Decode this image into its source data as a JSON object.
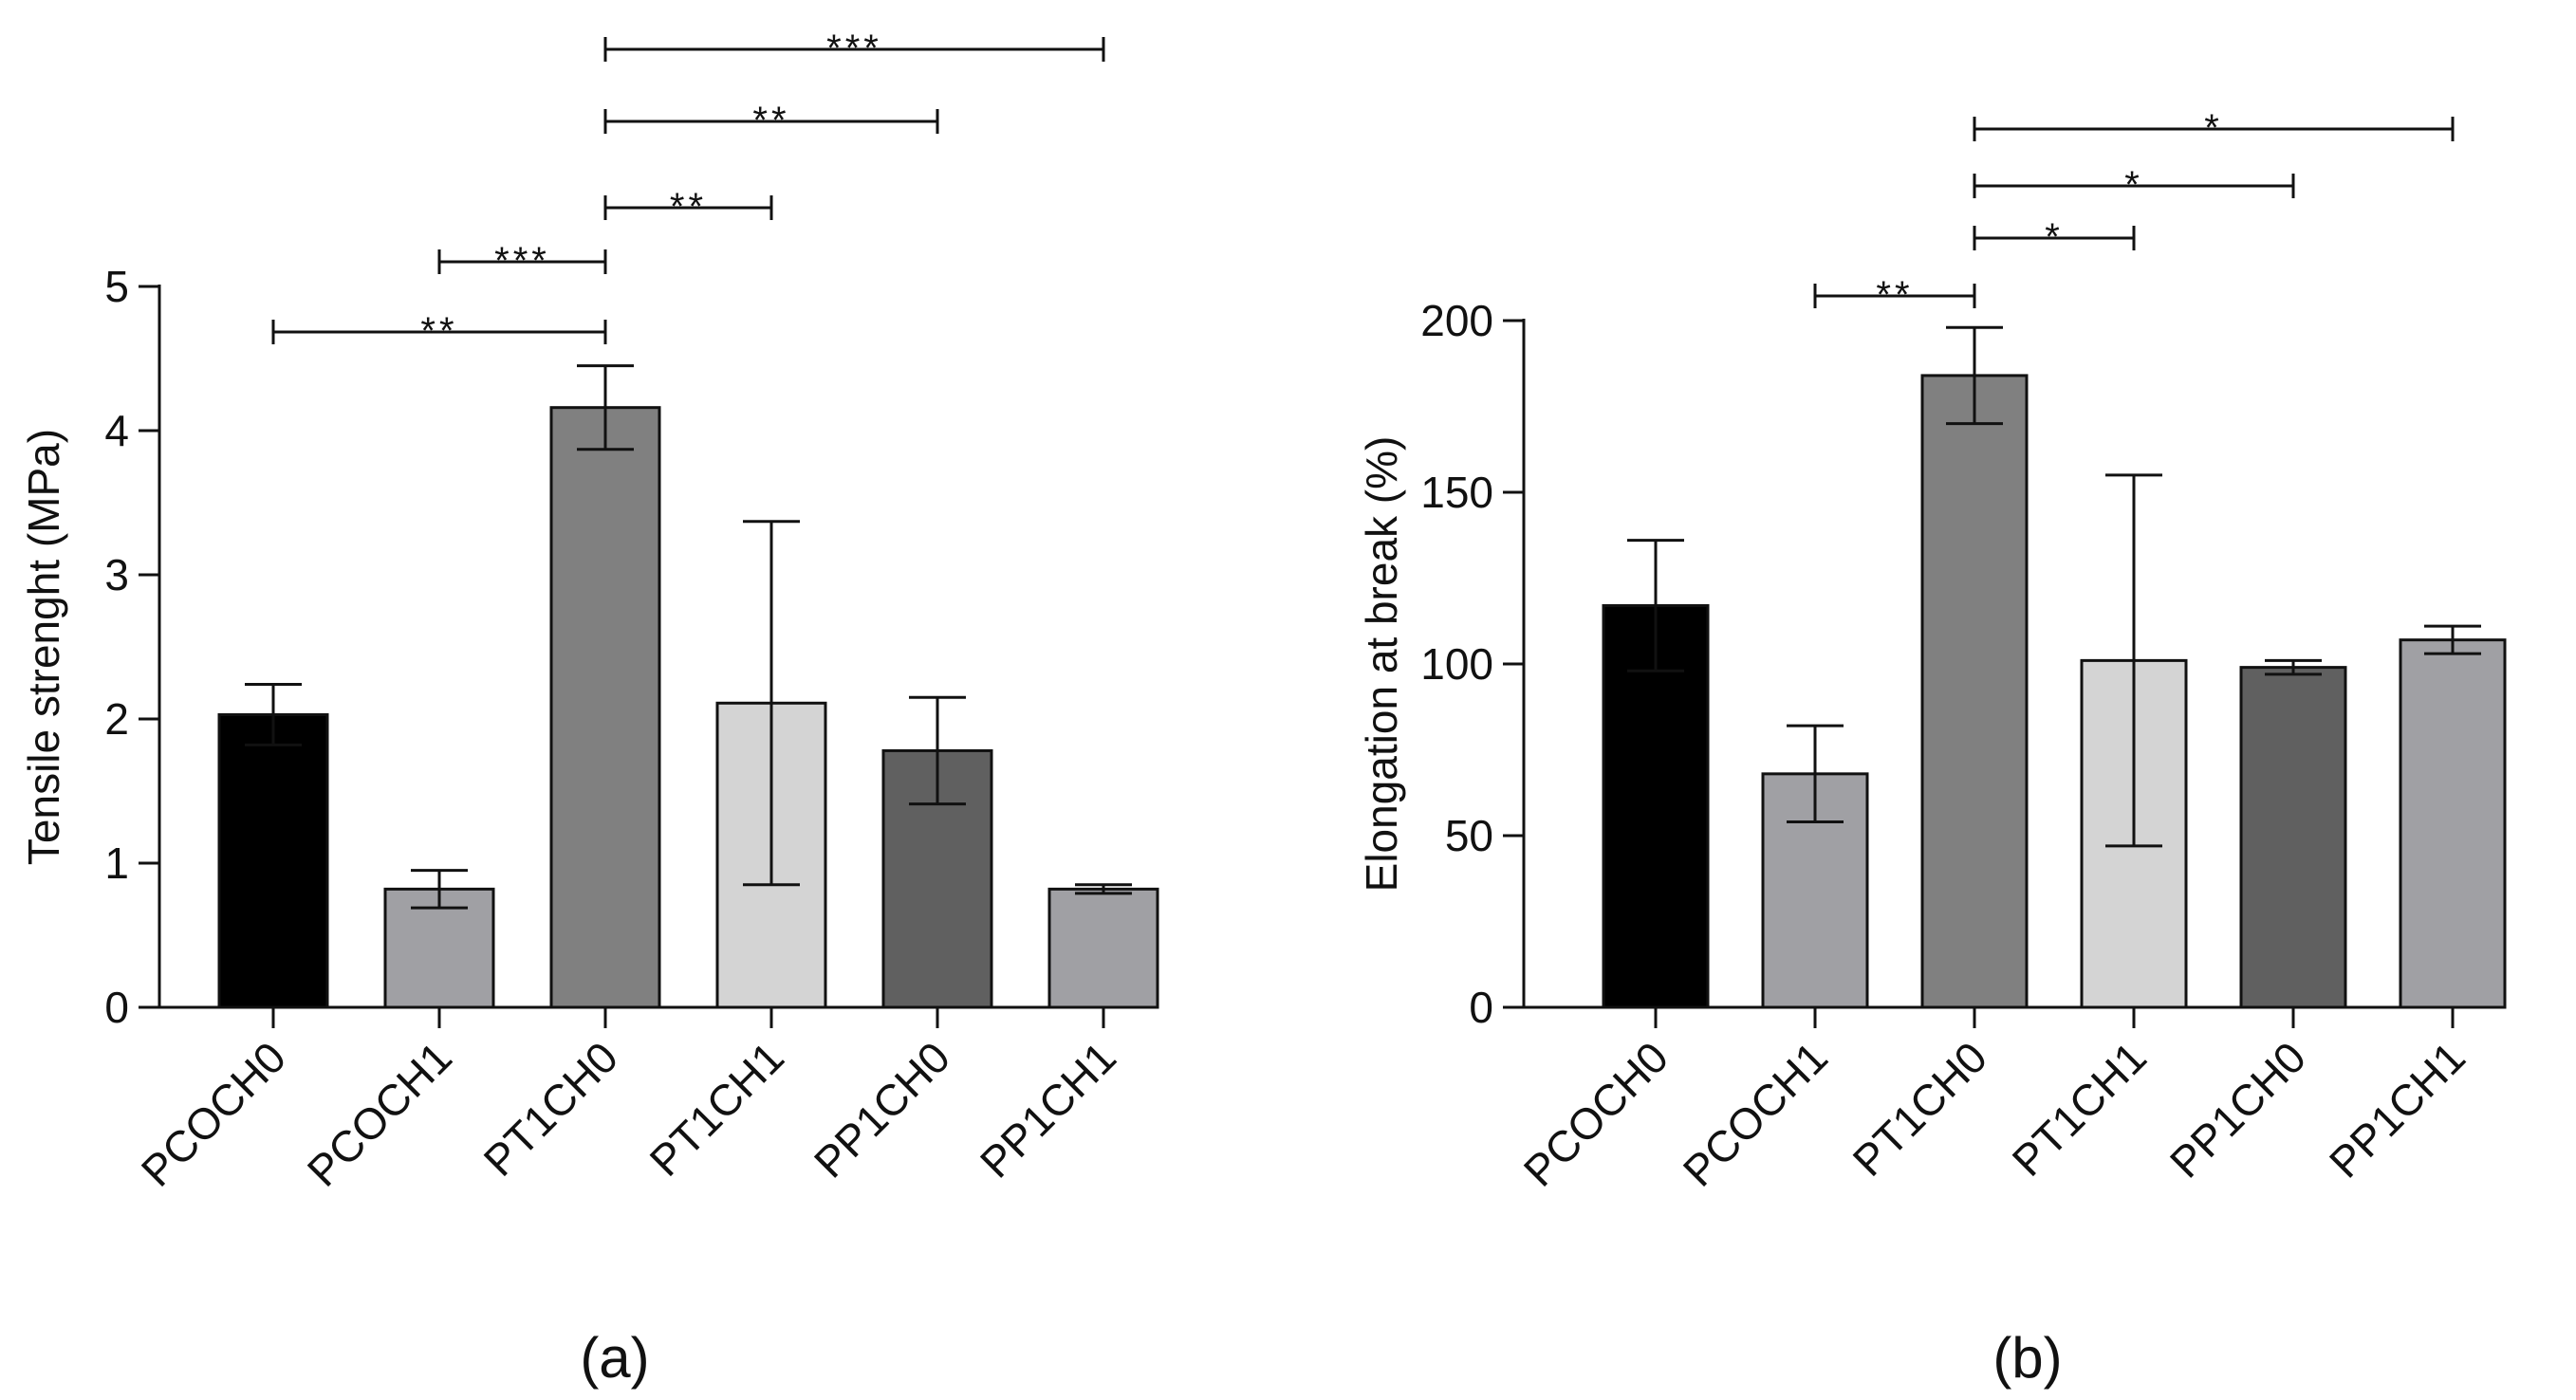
{
  "chart_data": [
    {
      "type": "bar",
      "panel_label": "(a)",
      "ylabel": "Tensile strenght (MPa)",
      "xlabel": "",
      "ylim": [
        0,
        5
      ],
      "yticks": [
        0,
        1,
        2,
        3,
        4,
        5
      ],
      "categories": [
        "PCOCH0",
        "PCOCH1",
        "PT1CH0",
        "PT1CH1",
        "PP1CH0",
        "PP1CH1"
      ],
      "values": [
        2.03,
        0.82,
        4.16,
        2.11,
        1.78,
        0.82
      ],
      "errors": [
        0.21,
        0.13,
        0.29,
        1.26,
        0.37,
        0.03
      ],
      "bar_colors": [
        "#000000",
        "#a0a0a4",
        "#808080",
        "#d4d4d4",
        "#606060",
        "#a0a0a4"
      ],
      "significance": [
        {
          "from": "PCOCH0",
          "to": "PT1CH0",
          "label": "**"
        },
        {
          "from": "PCOCH1",
          "to": "PT1CH0",
          "label": "***"
        },
        {
          "from": "PT1CH0",
          "to": "PT1CH1",
          "label": "**"
        },
        {
          "from": "PT1CH0",
          "to": "PP1CH0",
          "label": "**"
        },
        {
          "from": "PT1CH0",
          "to": "PP1CH1",
          "label": "***"
        }
      ],
      "grid": false
    },
    {
      "type": "bar",
      "panel_label": "(b)",
      "ylabel": "Elongation at break (%)",
      "xlabel": "",
      "ylim": [
        0,
        200
      ],
      "yticks": [
        0,
        50,
        100,
        150,
        200
      ],
      "categories": [
        "PCOCH0",
        "PCOCH1",
        "PT1CH0",
        "PT1CH1",
        "PP1CH0",
        "PP1CH1"
      ],
      "values": [
        117,
        68,
        184,
        101,
        99,
        107
      ],
      "errors": [
        19,
        14,
        14,
        54,
        2,
        4
      ],
      "bar_colors": [
        "#000000",
        "#a0a0a4",
        "#808080",
        "#d4d4d4",
        "#606060",
        "#a0a0a4"
      ],
      "significance": [
        {
          "from": "PCOCH1",
          "to": "PT1CH0",
          "label": "**"
        },
        {
          "from": "PT1CH0",
          "to": "PT1CH1",
          "label": "*"
        },
        {
          "from": "PT1CH0",
          "to": "PP1CH0",
          "label": "*"
        },
        {
          "from": "PT1CH0",
          "to": "PP1CH1",
          "label": "*"
        }
      ],
      "grid": false
    }
  ]
}
